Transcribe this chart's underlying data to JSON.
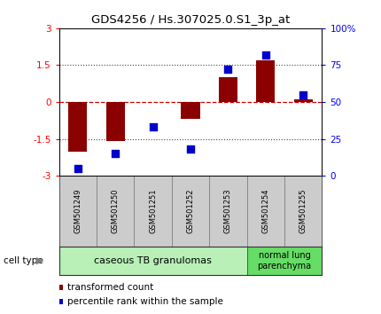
{
  "title": "GDS4256 / Hs.307025.0.S1_3p_at",
  "samples": [
    "GSM501249",
    "GSM501250",
    "GSM501251",
    "GSM501252",
    "GSM501253",
    "GSM501254",
    "GSM501255"
  ],
  "transformed_count": [
    -2.0,
    -1.6,
    0.0,
    -0.7,
    1.0,
    1.7,
    0.1
  ],
  "percentile_rank": [
    5,
    15,
    33,
    18,
    72,
    82,
    55
  ],
  "ylim_left": [
    -3,
    3
  ],
  "ylim_right": [
    0,
    100
  ],
  "yticks_left": [
    -3,
    -1.5,
    0,
    1.5,
    3
  ],
  "yticks_right": [
    0,
    25,
    50,
    75,
    100
  ],
  "yticklabels_left": [
    "-3",
    "-1.5",
    "0",
    "1.5",
    "3"
  ],
  "yticklabels_right": [
    "0",
    "25",
    "50",
    "75",
    "100%"
  ],
  "cell_types": [
    {
      "label": "caseous TB granulomas",
      "n_samples": 5,
      "color": "#b8f0b8"
    },
    {
      "label": "normal lung\nparenchyma",
      "n_samples": 2,
      "color": "#66dd66"
    }
  ],
  "bar_color": "#8B0000",
  "dot_color": "#0000CC",
  "zero_line_color": "#CC0000",
  "dotted_line_color": "#444444",
  "bg_color": "#ffffff",
  "plot_bg": "#ffffff",
  "bar_width": 0.5,
  "dot_size": 40,
  "legend_red_label": "transformed count",
  "legend_blue_label": "percentile rank within the sample",
  "cell_type_label": "cell type",
  "sample_box_color": "#cccccc",
  "grid_line_alpha": 0.5
}
